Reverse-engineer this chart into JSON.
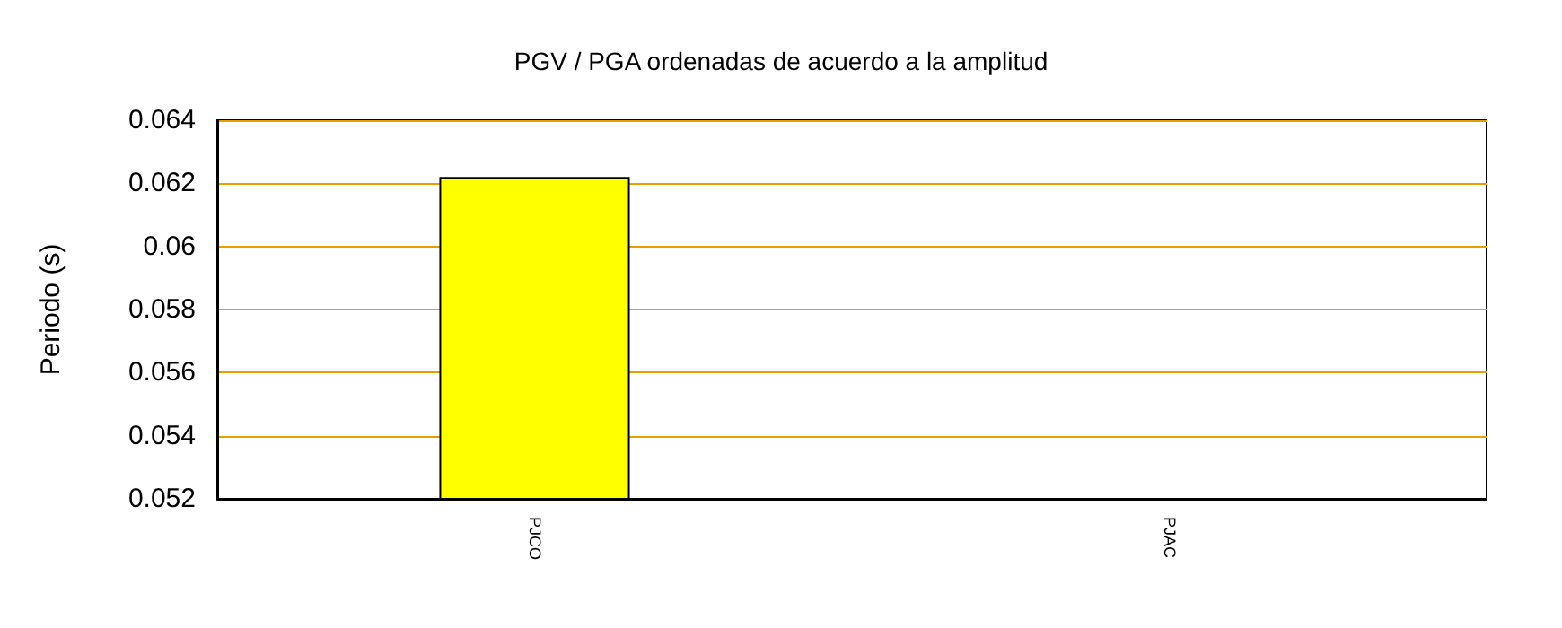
{
  "chart_data": {
    "type": "bar",
    "title": "PGV / PGA ordenadas de acuerdo a la amplitud",
    "ylabel": "Periodo (s)",
    "categories": [
      "PJCO",
      "PJAC"
    ],
    "values": [
      0.0622,
      null
    ],
    "color": "#ffff00",
    "ylim": [
      0.052,
      0.064
    ],
    "yticks": [
      0.052,
      0.054,
      0.056,
      0.058,
      0.06,
      0.062,
      0.064
    ],
    "grid": "y"
  }
}
